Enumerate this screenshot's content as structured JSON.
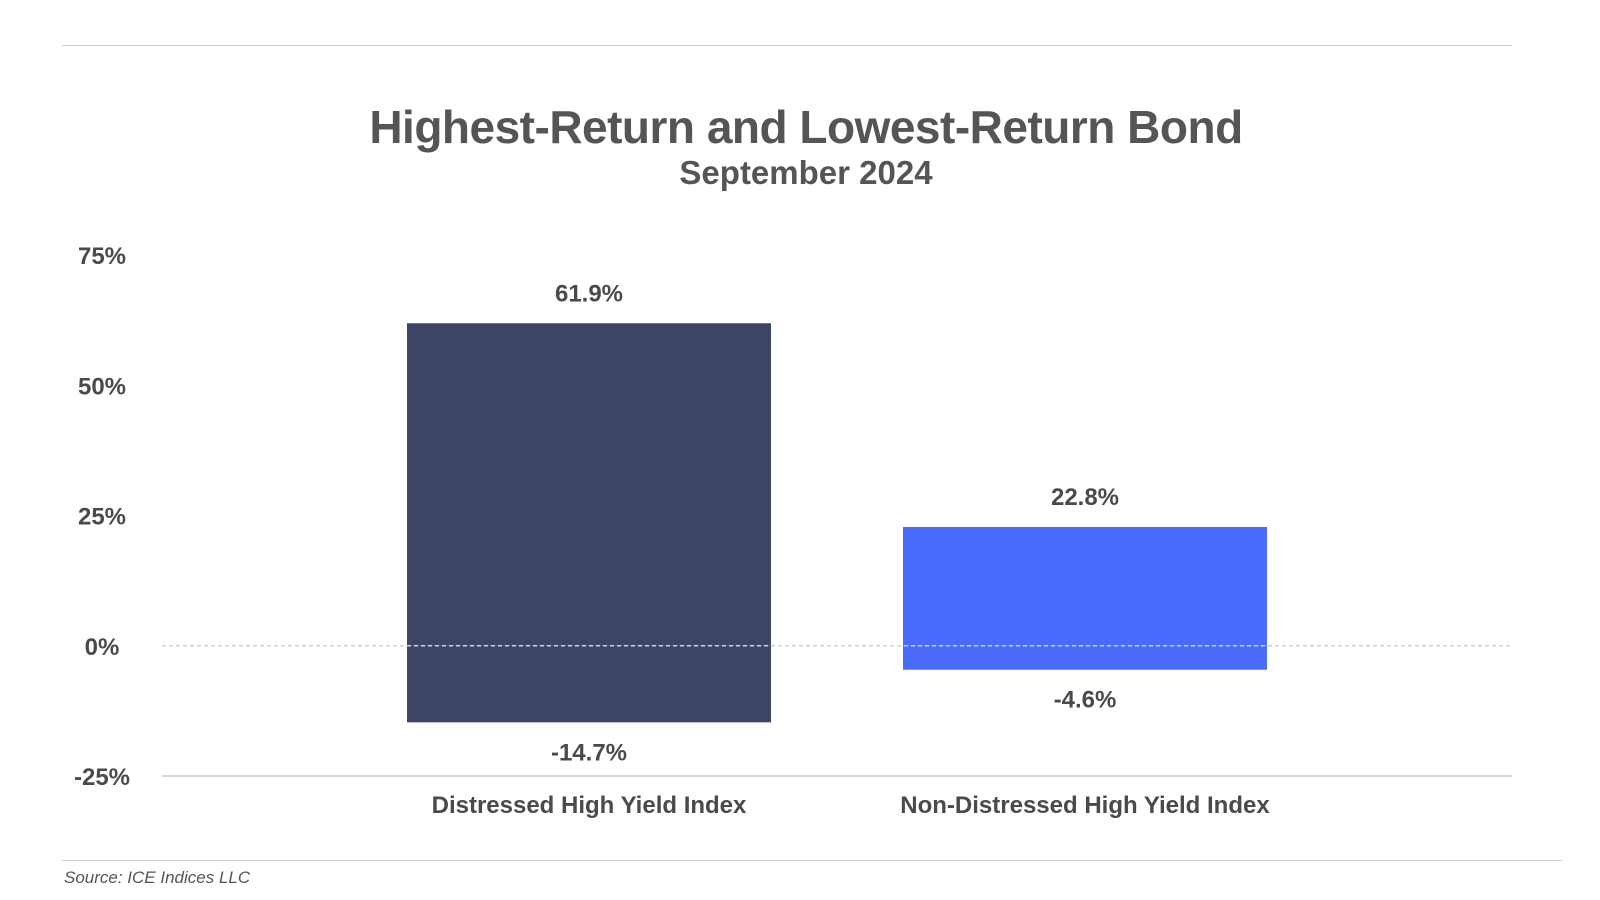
{
  "chart_data": {
    "type": "bar",
    "title": "Highest-Return and Lowest-Return Bond",
    "subtitle": "September 2024",
    "categories": [
      "Distressed High Yield Index",
      "Non-Distressed High Yield Index"
    ],
    "series": [
      {
        "values": [
          61.9,
          22.8
        ],
        "labels": [
          "61.9%",
          "22.8%"
        ]
      },
      {
        "values": [
          -14.7,
          -4.6
        ],
        "labels": [
          "-14.7%",
          "-4.6%"
        ]
      }
    ],
    "bar_colors": [
      "#3d4465",
      "#4a6cfd"
    ],
    "y_ticks": [
      {
        "value": 75,
        "label": "75%"
      },
      {
        "value": 50,
        "label": "50%"
      },
      {
        "value": 25,
        "label": "25%"
      },
      {
        "value": 0,
        "label": "0%"
      },
      {
        "value": -25,
        "label": "-25%"
      }
    ],
    "ylim": [
      -25,
      75
    ],
    "grid": false,
    "zero_line": "dashed",
    "source": "Source: ICE Indices LLC"
  }
}
